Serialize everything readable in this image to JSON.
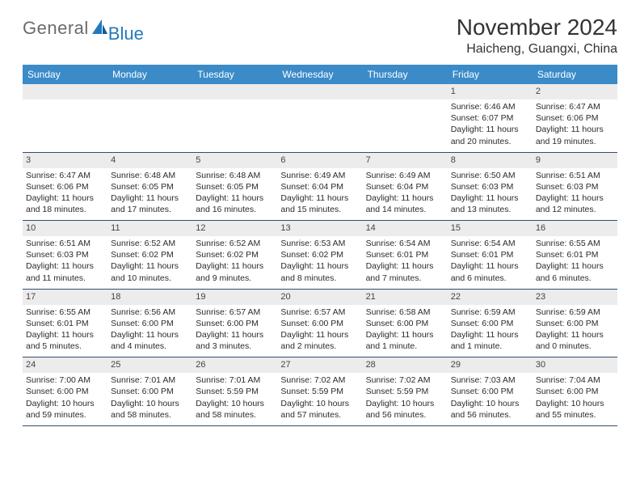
{
  "brand": {
    "text_gray": "General",
    "text_blue": "Blue"
  },
  "title": "November 2024",
  "location": "Haicheng, Guangxi, China",
  "colors": {
    "header_bg": "#3b8bc8",
    "header_text": "#ffffff",
    "daynum_bg": "#ececec",
    "row_border": "#2f4f6f",
    "logo_gray": "#6b6b6b",
    "logo_blue": "#2279bd",
    "text": "#2b2b2b",
    "background": "#ffffff"
  },
  "day_headers": [
    "Sunday",
    "Monday",
    "Tuesday",
    "Wednesday",
    "Thursday",
    "Friday",
    "Saturday"
  ],
  "weeks": [
    [
      {
        "n": "",
        "t": [
          "",
          "",
          "",
          ""
        ]
      },
      {
        "n": "",
        "t": [
          "",
          "",
          "",
          ""
        ]
      },
      {
        "n": "",
        "t": [
          "",
          "",
          "",
          ""
        ]
      },
      {
        "n": "",
        "t": [
          "",
          "",
          "",
          ""
        ]
      },
      {
        "n": "",
        "t": [
          "",
          "",
          "",
          ""
        ]
      },
      {
        "n": "1",
        "t": [
          "Sunrise: 6:46 AM",
          "Sunset: 6:07 PM",
          "Daylight: 11 hours",
          "and 20 minutes."
        ]
      },
      {
        "n": "2",
        "t": [
          "Sunrise: 6:47 AM",
          "Sunset: 6:06 PM",
          "Daylight: 11 hours",
          "and 19 minutes."
        ]
      }
    ],
    [
      {
        "n": "3",
        "t": [
          "Sunrise: 6:47 AM",
          "Sunset: 6:06 PM",
          "Daylight: 11 hours",
          "and 18 minutes."
        ]
      },
      {
        "n": "4",
        "t": [
          "Sunrise: 6:48 AM",
          "Sunset: 6:05 PM",
          "Daylight: 11 hours",
          "and 17 minutes."
        ]
      },
      {
        "n": "5",
        "t": [
          "Sunrise: 6:48 AM",
          "Sunset: 6:05 PM",
          "Daylight: 11 hours",
          "and 16 minutes."
        ]
      },
      {
        "n": "6",
        "t": [
          "Sunrise: 6:49 AM",
          "Sunset: 6:04 PM",
          "Daylight: 11 hours",
          "and 15 minutes."
        ]
      },
      {
        "n": "7",
        "t": [
          "Sunrise: 6:49 AM",
          "Sunset: 6:04 PM",
          "Daylight: 11 hours",
          "and 14 minutes."
        ]
      },
      {
        "n": "8",
        "t": [
          "Sunrise: 6:50 AM",
          "Sunset: 6:03 PM",
          "Daylight: 11 hours",
          "and 13 minutes."
        ]
      },
      {
        "n": "9",
        "t": [
          "Sunrise: 6:51 AM",
          "Sunset: 6:03 PM",
          "Daylight: 11 hours",
          "and 12 minutes."
        ]
      }
    ],
    [
      {
        "n": "10",
        "t": [
          "Sunrise: 6:51 AM",
          "Sunset: 6:03 PM",
          "Daylight: 11 hours",
          "and 11 minutes."
        ]
      },
      {
        "n": "11",
        "t": [
          "Sunrise: 6:52 AM",
          "Sunset: 6:02 PM",
          "Daylight: 11 hours",
          "and 10 minutes."
        ]
      },
      {
        "n": "12",
        "t": [
          "Sunrise: 6:52 AM",
          "Sunset: 6:02 PM",
          "Daylight: 11 hours",
          "and 9 minutes."
        ]
      },
      {
        "n": "13",
        "t": [
          "Sunrise: 6:53 AM",
          "Sunset: 6:02 PM",
          "Daylight: 11 hours",
          "and 8 minutes."
        ]
      },
      {
        "n": "14",
        "t": [
          "Sunrise: 6:54 AM",
          "Sunset: 6:01 PM",
          "Daylight: 11 hours",
          "and 7 minutes."
        ]
      },
      {
        "n": "15",
        "t": [
          "Sunrise: 6:54 AM",
          "Sunset: 6:01 PM",
          "Daylight: 11 hours",
          "and 6 minutes."
        ]
      },
      {
        "n": "16",
        "t": [
          "Sunrise: 6:55 AM",
          "Sunset: 6:01 PM",
          "Daylight: 11 hours",
          "and 6 minutes."
        ]
      }
    ],
    [
      {
        "n": "17",
        "t": [
          "Sunrise: 6:55 AM",
          "Sunset: 6:01 PM",
          "Daylight: 11 hours",
          "and 5 minutes."
        ]
      },
      {
        "n": "18",
        "t": [
          "Sunrise: 6:56 AM",
          "Sunset: 6:00 PM",
          "Daylight: 11 hours",
          "and 4 minutes."
        ]
      },
      {
        "n": "19",
        "t": [
          "Sunrise: 6:57 AM",
          "Sunset: 6:00 PM",
          "Daylight: 11 hours",
          "and 3 minutes."
        ]
      },
      {
        "n": "20",
        "t": [
          "Sunrise: 6:57 AM",
          "Sunset: 6:00 PM",
          "Daylight: 11 hours",
          "and 2 minutes."
        ]
      },
      {
        "n": "21",
        "t": [
          "Sunrise: 6:58 AM",
          "Sunset: 6:00 PM",
          "Daylight: 11 hours",
          "and 1 minute."
        ]
      },
      {
        "n": "22",
        "t": [
          "Sunrise: 6:59 AM",
          "Sunset: 6:00 PM",
          "Daylight: 11 hours",
          "and 1 minute."
        ]
      },
      {
        "n": "23",
        "t": [
          "Sunrise: 6:59 AM",
          "Sunset: 6:00 PM",
          "Daylight: 11 hours",
          "and 0 minutes."
        ]
      }
    ],
    [
      {
        "n": "24",
        "t": [
          "Sunrise: 7:00 AM",
          "Sunset: 6:00 PM",
          "Daylight: 10 hours",
          "and 59 minutes."
        ]
      },
      {
        "n": "25",
        "t": [
          "Sunrise: 7:01 AM",
          "Sunset: 6:00 PM",
          "Daylight: 10 hours",
          "and 58 minutes."
        ]
      },
      {
        "n": "26",
        "t": [
          "Sunrise: 7:01 AM",
          "Sunset: 5:59 PM",
          "Daylight: 10 hours",
          "and 58 minutes."
        ]
      },
      {
        "n": "27",
        "t": [
          "Sunrise: 7:02 AM",
          "Sunset: 5:59 PM",
          "Daylight: 10 hours",
          "and 57 minutes."
        ]
      },
      {
        "n": "28",
        "t": [
          "Sunrise: 7:02 AM",
          "Sunset: 5:59 PM",
          "Daylight: 10 hours",
          "and 56 minutes."
        ]
      },
      {
        "n": "29",
        "t": [
          "Sunrise: 7:03 AM",
          "Sunset: 6:00 PM",
          "Daylight: 10 hours",
          "and 56 minutes."
        ]
      },
      {
        "n": "30",
        "t": [
          "Sunrise: 7:04 AM",
          "Sunset: 6:00 PM",
          "Daylight: 10 hours",
          "and 55 minutes."
        ]
      }
    ]
  ]
}
